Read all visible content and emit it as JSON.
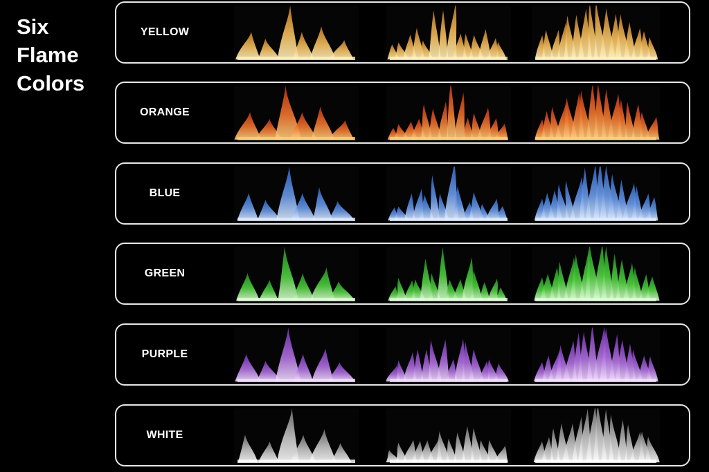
{
  "title": [
    "Six",
    "Flame",
    "Colors"
  ],
  "rows": [
    {
      "label": "YELLOW",
      "colors": {
        "core": "#fff2c0",
        "mid": "#f5c060",
        "edge": "#c07820"
      }
    },
    {
      "label": "ORANGE",
      "colors": {
        "core": "#ffd080",
        "mid": "#f07830",
        "edge": "#c03010"
      }
    },
    {
      "label": "BLUE",
      "colors": {
        "core": "#e0ecff",
        "mid": "#6a9ae8",
        "edge": "#2a60c0"
      }
    },
    {
      "label": "GREEN",
      "colors": {
        "core": "#e0ffd8",
        "mid": "#50d040",
        "edge": "#1f9020"
      }
    },
    {
      "label": "PURPLE",
      "colors": {
        "core": "#f4e0ff",
        "mid": "#b070e0",
        "edge": "#7030b0"
      }
    },
    {
      "label": "WHITE",
      "colors": {
        "core": "#ffffff",
        "mid": "#c8c8c8",
        "edge": "#707070"
      }
    }
  ],
  "flame_styles": [
    "low-cluster",
    "wide-spread",
    "tall-tips"
  ]
}
